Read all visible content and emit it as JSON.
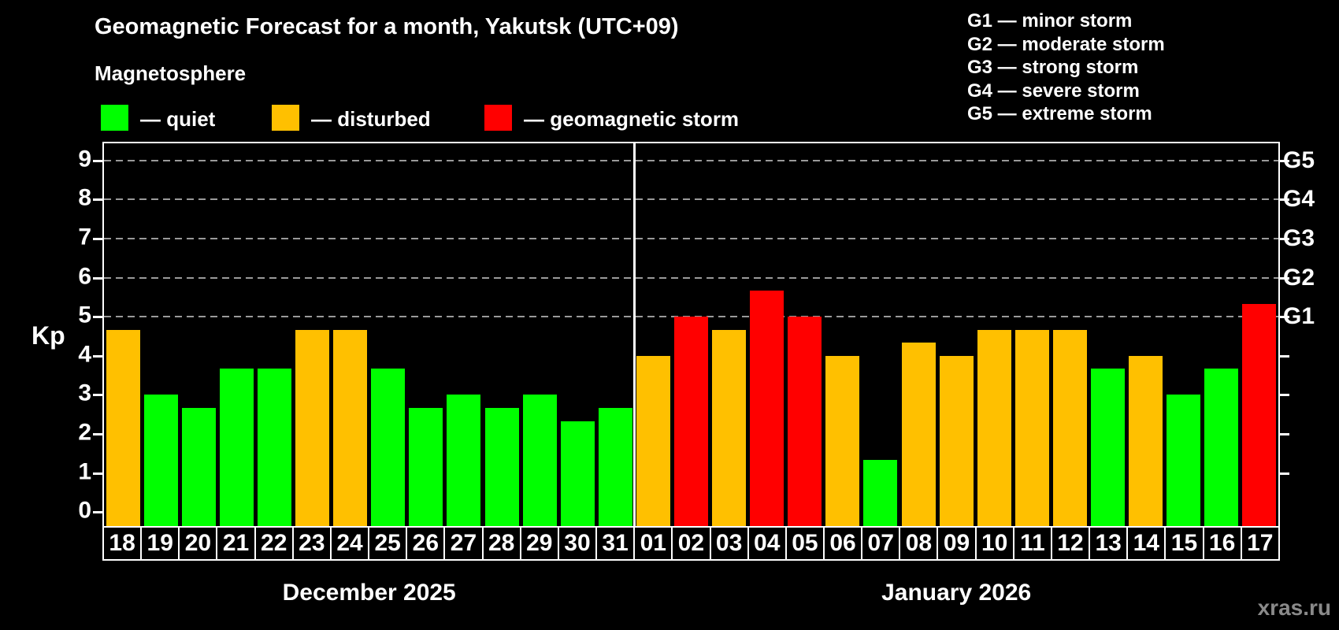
{
  "header": {
    "title": "Geomagnetic Forecast for a month, Yakutsk (UTC+09)",
    "subtitle": "Magnetosphere"
  },
  "status_legend": [
    {
      "key": "quiet",
      "label": "— quiet",
      "color": "#00ff00"
    },
    {
      "key": "disturbed",
      "label": "— disturbed",
      "color": "#ffc000"
    },
    {
      "key": "storm",
      "label": "— geomagnetic storm",
      "color": "#ff0000"
    }
  ],
  "g_legend": [
    "G1 — minor storm",
    "G2 — moderate storm",
    "G3 — strong storm",
    "G4 — severe storm",
    "G5 — extreme storm"
  ],
  "watermark": "xras.ru",
  "chart_data": {
    "type": "bar",
    "title": "Geomagnetic Forecast for a month, Yakutsk (UTC+09)",
    "ylabel": "Kp",
    "ylim": [
      0,
      9
    ],
    "yticks": [
      0,
      1,
      2,
      3,
      4,
      5,
      6,
      7,
      8,
      9
    ],
    "grid_levels": [
      5,
      6,
      7,
      8,
      9
    ],
    "right_axis": [
      {
        "level": 5,
        "label": "G1"
      },
      {
        "level": 6,
        "label": "G2"
      },
      {
        "level": 7,
        "label": "G3"
      },
      {
        "level": 8,
        "label": "G4"
      },
      {
        "level": 9,
        "label": "G5"
      }
    ],
    "right_ticks": [
      1,
      2,
      3,
      4,
      5,
      6,
      7,
      8,
      9
    ],
    "colors": {
      "quiet": "#00ff00",
      "disturbed": "#ffc000",
      "storm": "#ff0000"
    },
    "months": [
      {
        "label": "December 2025",
        "start_index": 0,
        "count": 14
      },
      {
        "label": "January 2026",
        "start_index": 14,
        "count": 17
      }
    ],
    "bars": [
      {
        "day": "18",
        "kp": 4.67,
        "status": "disturbed"
      },
      {
        "day": "19",
        "kp": 3.0,
        "status": "quiet"
      },
      {
        "day": "20",
        "kp": 2.67,
        "status": "quiet"
      },
      {
        "day": "21",
        "kp": 3.67,
        "status": "quiet"
      },
      {
        "day": "22",
        "kp": 3.67,
        "status": "quiet"
      },
      {
        "day": "23",
        "kp": 4.67,
        "status": "disturbed"
      },
      {
        "day": "24",
        "kp": 4.67,
        "status": "disturbed"
      },
      {
        "day": "25",
        "kp": 3.67,
        "status": "quiet"
      },
      {
        "day": "26",
        "kp": 2.67,
        "status": "quiet"
      },
      {
        "day": "27",
        "kp": 3.0,
        "status": "quiet"
      },
      {
        "day": "28",
        "kp": 2.67,
        "status": "quiet"
      },
      {
        "day": "29",
        "kp": 3.0,
        "status": "quiet"
      },
      {
        "day": "30",
        "kp": 2.33,
        "status": "quiet"
      },
      {
        "day": "31",
        "kp": 2.67,
        "status": "quiet"
      },
      {
        "day": "01",
        "kp": 4.0,
        "status": "disturbed"
      },
      {
        "day": "02",
        "kp": 5.0,
        "status": "storm"
      },
      {
        "day": "03",
        "kp": 4.67,
        "status": "disturbed"
      },
      {
        "day": "04",
        "kp": 5.67,
        "status": "storm"
      },
      {
        "day": "05",
        "kp": 5.0,
        "status": "storm"
      },
      {
        "day": "06",
        "kp": 4.0,
        "status": "disturbed"
      },
      {
        "day": "07",
        "kp": 1.33,
        "status": "quiet"
      },
      {
        "day": "08",
        "kp": 4.33,
        "status": "disturbed"
      },
      {
        "day": "09",
        "kp": 4.0,
        "status": "disturbed"
      },
      {
        "day": "10",
        "kp": 4.67,
        "status": "disturbed"
      },
      {
        "day": "11",
        "kp": 4.67,
        "status": "disturbed"
      },
      {
        "day": "12",
        "kp": 4.67,
        "status": "disturbed"
      },
      {
        "day": "13",
        "kp": 3.67,
        "status": "quiet"
      },
      {
        "day": "14",
        "kp": 4.0,
        "status": "disturbed"
      },
      {
        "day": "15",
        "kp": 3.0,
        "status": "quiet"
      },
      {
        "day": "16",
        "kp": 3.67,
        "status": "quiet"
      },
      {
        "day": "17",
        "kp": 5.33,
        "status": "storm"
      }
    ]
  }
}
